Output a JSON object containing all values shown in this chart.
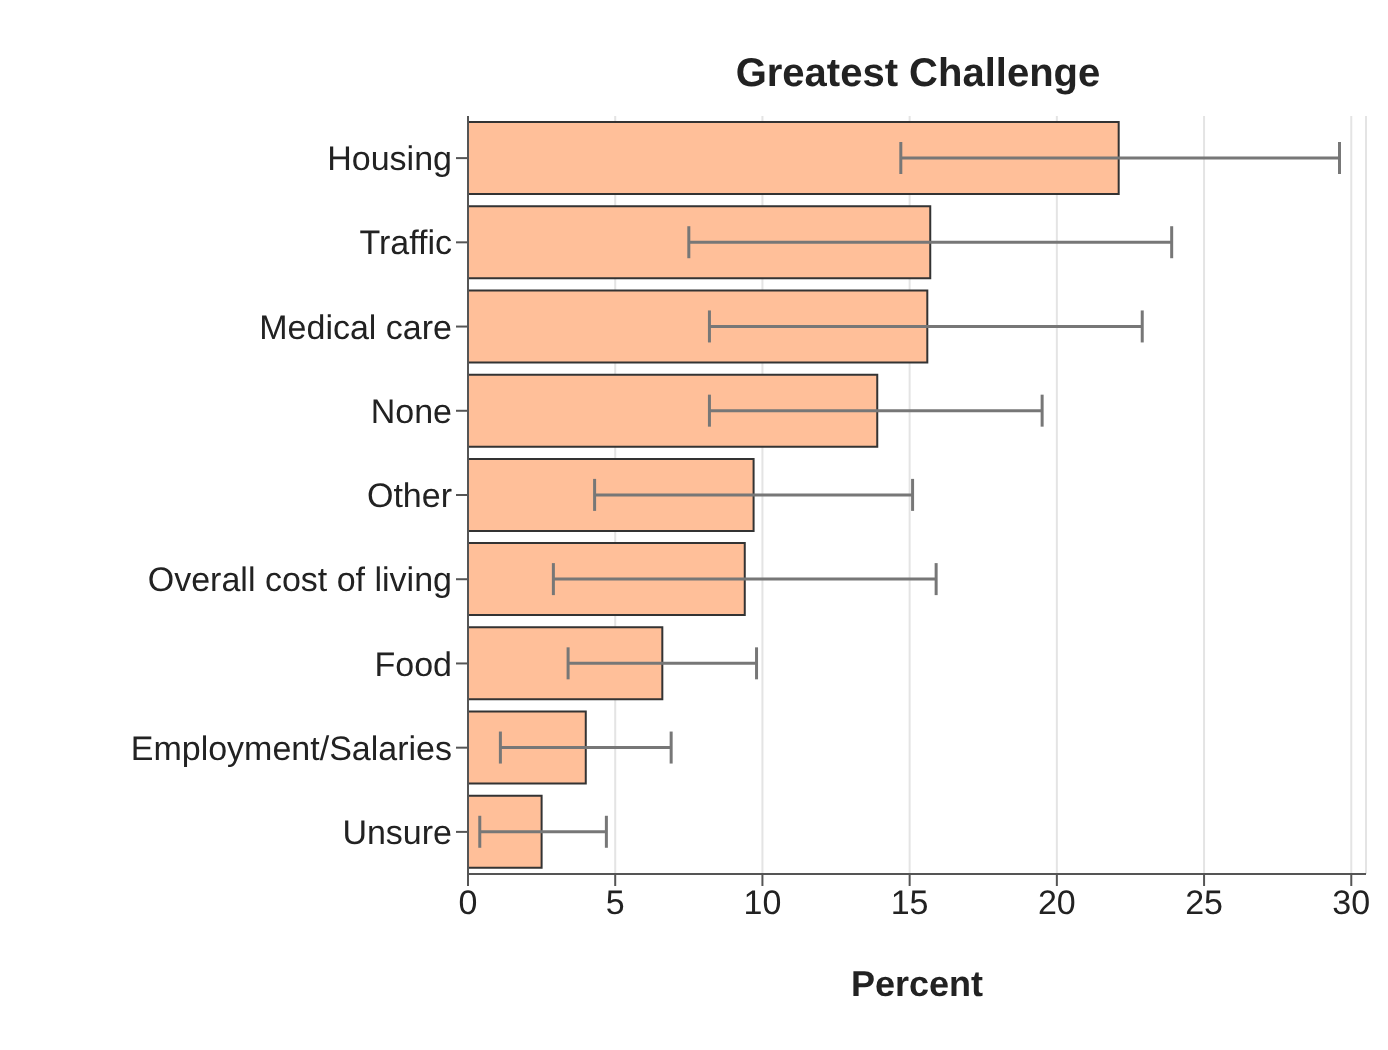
{
  "chart_data": {
    "type": "bar",
    "orientation": "horizontal",
    "title": "Greatest Challenge",
    "xlabel": "Percent",
    "categories": [
      "Housing",
      "Traffic",
      "Medical care",
      "None",
      "Other",
      "Overall cost of living",
      "Food",
      "Employment/Salaries",
      "Unsure"
    ],
    "values": [
      22.1,
      15.7,
      15.6,
      13.9,
      9.7,
      9.4,
      6.6,
      4.0,
      2.5
    ],
    "errors": [
      [
        14.7,
        29.6
      ],
      [
        7.5,
        23.9
      ],
      [
        8.2,
        22.9
      ],
      [
        8.2,
        19.5
      ],
      [
        4.3,
        15.1
      ],
      [
        2.9,
        15.9
      ],
      [
        3.4,
        9.8
      ],
      [
        1.1,
        6.9
      ],
      [
        0.4,
        4.7
      ]
    ],
    "color": "#ffbf99",
    "xlim": [
      0,
      30.5
    ],
    "xticks": [
      0,
      5,
      10,
      15,
      20,
      25,
      30
    ],
    "grid": "x",
    "legend": false
  }
}
